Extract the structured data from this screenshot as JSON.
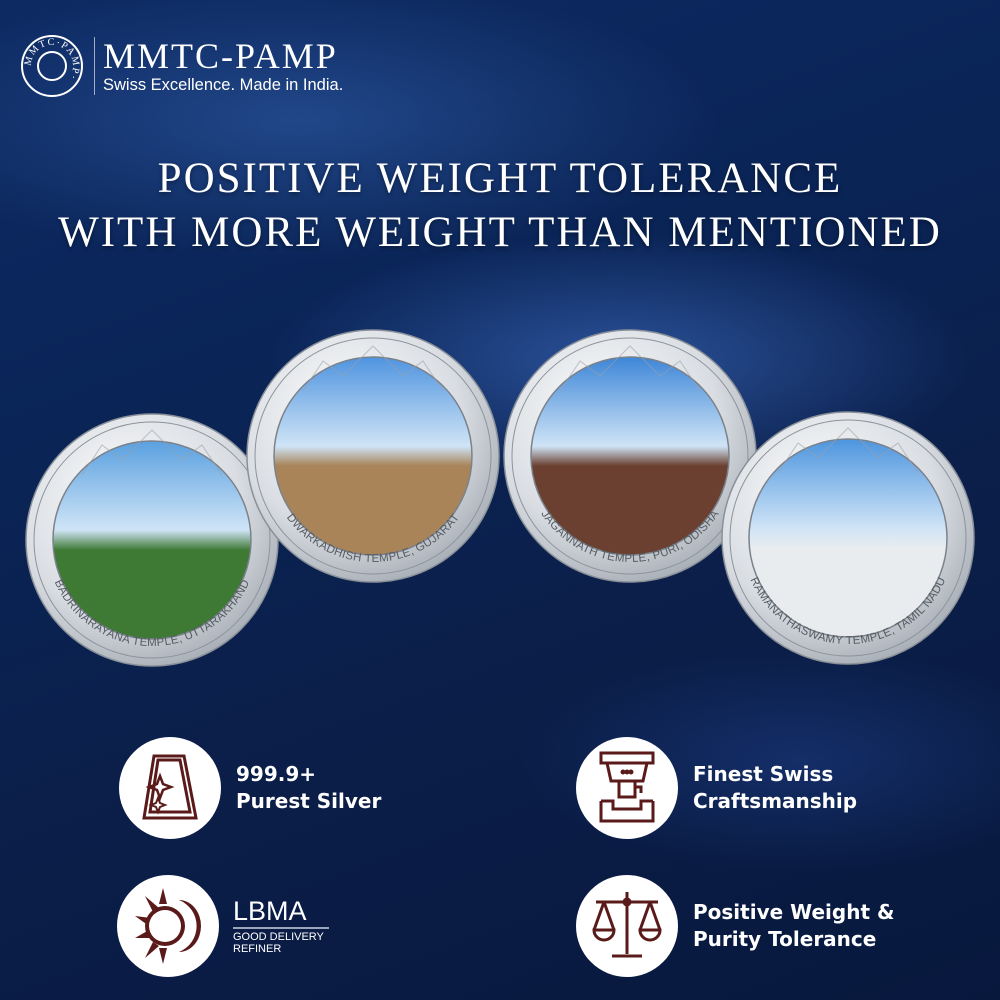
{
  "logo": {
    "brand": "MMTC-PAMP",
    "tagline": "Swiss Excellence. Made in India.",
    "seal_text": "MMTC·PAMP·"
  },
  "headline": {
    "line1": "POSITIVE WEIGHT TOLERANCE",
    "line2": "WITH MORE WEIGHT THAN MENTIONED"
  },
  "coins": [
    {
      "label": "BADRINARAYANA TEMPLE, UTTARAKHAND",
      "sky": "#5aa0e0",
      "ground": "#3f7a35"
    },
    {
      "label": "DWARKADHISH TEMPLE, GUJARAT",
      "sky": "#4f94e0",
      "ground": "#a88458"
    },
    {
      "label": "JAGANNATH TEMPLE, PURI, ODISHA",
      "sky": "#3d86d8",
      "ground": "#6b4030"
    },
    {
      "label": "RAMANATHASWAMY TEMPLE, TAMIL NADU",
      "sky": "#4d95df",
      "ground": "#e8ecef"
    }
  ],
  "features": [
    {
      "icon": "silver-bar-icon",
      "line1": "999.9+",
      "line2": "Purest Silver"
    },
    {
      "icon": "minting-press-icon",
      "line1": "Finest Swiss",
      "line2": "Craftsmanship"
    },
    {
      "icon": "lbma-sun-icon",
      "title": "LBMA",
      "sub1": "GOOD DELIVERY",
      "sub2": "REFINER"
    },
    {
      "icon": "scales-icon",
      "line1": "Positive Weight &",
      "line2": "Purity Tolerance"
    }
  ],
  "colors": {
    "icon_color": "#5a1a1a",
    "background": "#0b1f4a"
  }
}
